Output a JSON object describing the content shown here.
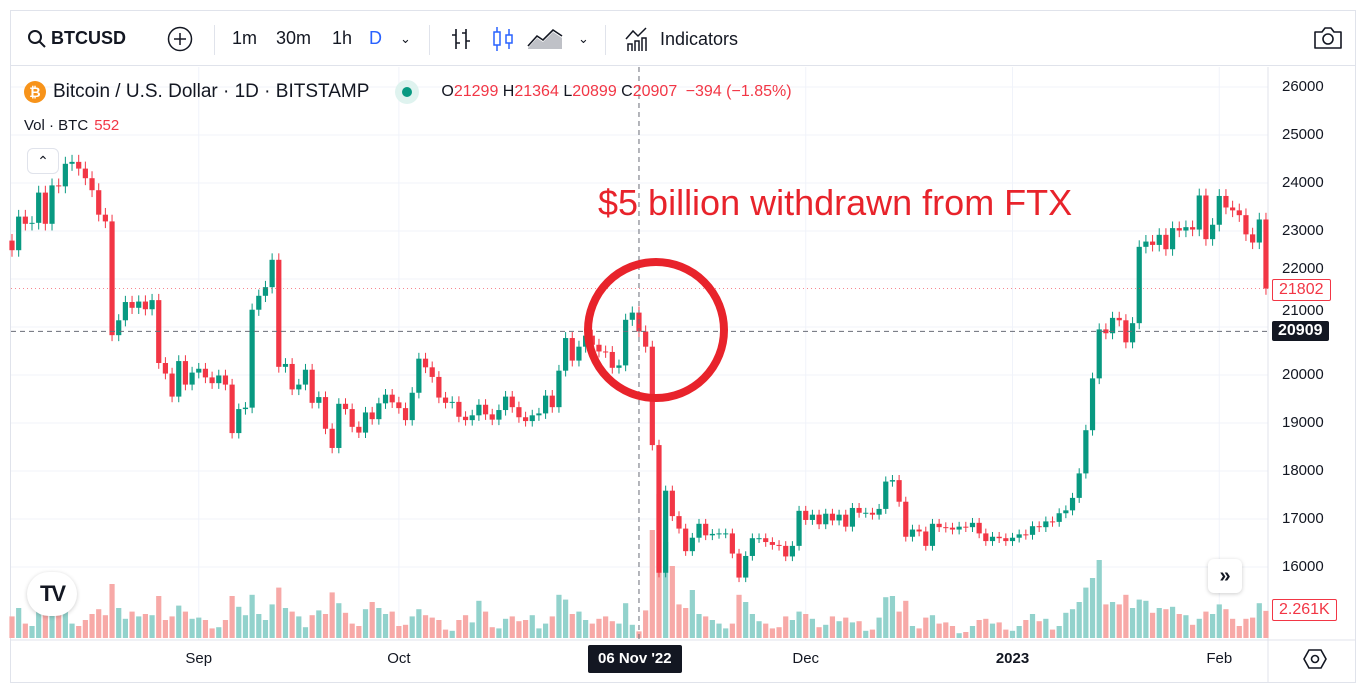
{
  "toolbar": {
    "symbol": "BTCUSD",
    "intervals": [
      "1m",
      "30m",
      "1h",
      "D"
    ],
    "active_interval": "D",
    "indicators_label": "Indicators"
  },
  "legend": {
    "title": "Bitcoin / U.S. Dollar · 1D · BITSTAMP",
    "o_label": "O",
    "o": "21299",
    "h_label": "H",
    "h": "21364",
    "l_label": "L",
    "l": "20899",
    "c_label": "C",
    "c": "20907",
    "change": "−394 (−1.85%)",
    "vol_label": "Vol · BTC",
    "vol_value": "552"
  },
  "annotation": "$5 billion withdrawn from FTX",
  "crosshair": {
    "date_label": "06 Nov '22",
    "price_label": "20909"
  },
  "last_price_label": "21802",
  "last_volume_label": "2.261K",
  "colors": {
    "up": "#089981",
    "down": "#f23645",
    "vol_up": "#92d2cc",
    "vol_down": "#f7a9a7",
    "annotation": "#e8232b"
  },
  "chart_data": {
    "type": "candlestick",
    "title": "Bitcoin / U.S. Dollar · 1D · BITSTAMP",
    "start_date": "2022-08-04",
    "end_date": "2023-02-08",
    "ylim": [
      15600,
      26300
    ],
    "y_ticks": [
      "16000",
      "17000",
      "18000",
      "19000",
      "20000",
      "21000",
      "22000",
      "23000",
      "24000",
      "25000",
      "26000"
    ],
    "x_ticks": [
      {
        "label": "Sep",
        "index": 28
      },
      {
        "label": "Oct",
        "index": 58
      },
      {
        "label": "Dec",
        "index": 119
      },
      {
        "label": "2023",
        "index": 150,
        "bold": true
      },
      {
        "label": "Feb",
        "index": 181
      }
    ],
    "crosshair_index": 94,
    "first_open": 22800,
    "close": [
      22600,
      23300,
      23150,
      23170,
      23800,
      23150,
      23950,
      23930,
      24400,
      24440,
      24300,
      24100,
      23850,
      23340,
      23200,
      20830,
      21140,
      21520,
      21400,
      21530,
      21370,
      21560,
      20250,
      20030,
      19550,
      20290,
      19800,
      20050,
      20130,
      19950,
      19830,
      19990,
      19800,
      18790,
      19290,
      19320,
      21360,
      21650,
      21830,
      22400,
      20170,
      20230,
      19700,
      19800,
      20110,
      19420,
      19540,
      18880,
      18480,
      19400,
      19290,
      18920,
      18800,
      19220,
      19080,
      19410,
      19590,
      19430,
      19310,
      19060,
      19630,
      20340,
      20160,
      19960,
      19530,
      19420,
      19440,
      19130,
      19060,
      19160,
      19380,
      19180,
      19070,
      19270,
      19550,
      19330,
      19120,
      19040,
      19160,
      19200,
      19570,
      19330,
      20090,
      20770,
      20300,
      20590,
      20820,
      20630,
      20490,
      20480,
      20150,
      20200,
      21150,
      21300,
      20907,
      20590,
      18540,
      15880,
      17590,
      17060,
      16800,
      16330,
      16610,
      16900,
      16660,
      16690,
      16700,
      16700,
      16280,
      15780,
      16230,
      16600,
      16600,
      16520,
      16460,
      16440,
      16220,
      16440,
      17170,
      16980,
      17090,
      16890,
      17110,
      16970,
      17090,
      16840,
      17230,
      17130,
      17130,
      17090,
      17210,
      17780,
      17810,
      17360,
      16630,
      16780,
      16740,
      16440,
      16900,
      16830,
      16820,
      16780,
      16840,
      16830,
      16920,
      16700,
      16540,
      16630,
      16600,
      16540,
      16610,
      16680,
      16670,
      16850,
      16830,
      16950,
      16940,
      17120,
      17180,
      17440,
      17950,
      18850,
      19930,
      20950,
      20870,
      21190,
      21140,
      20680,
      21080,
      22670,
      22780,
      22710,
      22920,
      22620,
      23060,
      23010,
      23080,
      23030,
      23740,
      22830,
      23130,
      23730,
      23490,
      23430,
      23330,
      22930,
      22760,
      23240,
      21802
    ],
    "volume_k": [
      1.8,
      2.5,
      1.2,
      1.0,
      2.2,
      2.0,
      2.6,
      2.1,
      2.8,
      1.2,
      1.0,
      1.5,
      2.0,
      2.4,
      1.9,
      4.5,
      2.5,
      1.6,
      2.2,
      1.8,
      2.0,
      1.9,
      3.5,
      1.5,
      1.8,
      2.7,
      2.2,
      1.6,
      1.7,
      1.5,
      0.8,
      0.9,
      1.5,
      3.5,
      2.6,
      1.9,
      3.6,
      2.0,
      1.5,
      2.8,
      4.2,
      2.5,
      2.2,
      1.8,
      0.9,
      1.9,
      2.3,
      2.0,
      3.8,
      2.9,
      2.1,
      1.2,
      1.0,
      2.4,
      3.0,
      2.5,
      2.0,
      2.2,
      1.0,
      1.1,
      1.8,
      2.4,
      1.9,
      1.7,
      1.5,
      0.7,
      0.6,
      1.5,
      1.9,
      1.3,
      3.1,
      2.2,
      0.9,
      0.8,
      1.6,
      1.8,
      1.4,
      1.5,
      1.9,
      0.8,
      1.2,
      1.8,
      3.6,
      3.2,
      2.0,
      2.2,
      1.5,
      1.2,
      1.6,
      1.8,
      1.4,
      1.2,
      2.9,
      1.1,
      0.552,
      2.3,
      9.0,
      12.0,
      8.0,
      6.0,
      2.8,
      2.5,
      4.0,
      2.0,
      1.8,
      1.5,
      1.2,
      0.8,
      1.2,
      3.6,
      3.0,
      2.0,
      1.4,
      1.2,
      0.8,
      0.9,
      1.8,
      1.5,
      2.2,
      2.0,
      1.6,
      0.9,
      1.1,
      1.8,
      1.4,
      1.7,
      1.3,
      1.4,
      0.6,
      0.7,
      1.7,
      3.4,
      3.5,
      2.2,
      3.1,
      1.0,
      0.8,
      1.7,
      1.9,
      1.2,
      1.3,
      1.0,
      0.4,
      0.5,
      1.0,
      1.5,
      1.6,
      1.2,
      1.3,
      0.7,
      0.6,
      1.0,
      1.5,
      2.0,
      1.4,
      1.6,
      0.7,
      1.0,
      2.1,
      2.4,
      3.0,
      4.2,
      5.0,
      6.5,
      2.8,
      3.0,
      2.8,
      3.6,
      2.5,
      3.2,
      3.1,
      2.1,
      2.5,
      2.4,
      2.6,
      2.0,
      1.9,
      1.1,
      1.6,
      2.2,
      2.0,
      2.8,
      2.4,
      1.6,
      1.0,
      1.6,
      1.7,
      2.9,
      2.261
    ]
  }
}
